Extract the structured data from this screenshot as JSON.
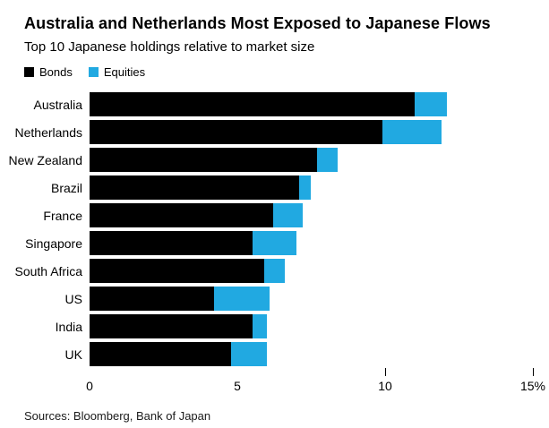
{
  "title": "Australia and Netherlands Most Exposed to Japanese Flows",
  "subtitle": "Top 10 Japanese holdings relative to market size",
  "source": "Sources: Bloomberg, Bank of Japan",
  "legend": [
    {
      "label": "Bonds",
      "color": "#000000"
    },
    {
      "label": "Equities",
      "color": "#21a9e1"
    }
  ],
  "chart_data": {
    "type": "bar",
    "orientation": "horizontal",
    "stacked": true,
    "title": "Australia and Netherlands Most Exposed to Japanese Flows",
    "subtitle": "Top 10 Japanese holdings relative to market size",
    "categories": [
      "Australia",
      "Netherlands",
      "New Zealand",
      "Brazil",
      "France",
      "Singapore",
      "South Africa",
      "US",
      "India",
      "UK"
    ],
    "series": [
      {
        "name": "Bonds",
        "color": "#000000",
        "values": [
          11.0,
          9.9,
          7.7,
          7.1,
          6.2,
          5.5,
          5.9,
          4.2,
          5.5,
          4.8
        ]
      },
      {
        "name": "Equities",
        "color": "#21a9e1",
        "values": [
          1.1,
          2.0,
          0.7,
          0.4,
          1.0,
          1.5,
          0.7,
          1.9,
          0.5,
          1.2
        ]
      }
    ],
    "xlabel": "",
    "ylabel": "",
    "xlim": [
      0,
      15
    ],
    "xticks": [
      0,
      5,
      10,
      15
    ],
    "xtick_labels": [
      "0",
      "5",
      "10",
      "15%"
    ],
    "tick_marks": [
      10,
      15
    ],
    "grid": false,
    "legend_position": "top-left"
  }
}
